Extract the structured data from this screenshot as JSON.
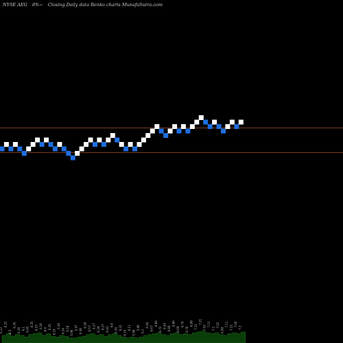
{
  "header": {
    "ticker": "NYSE AEG",
    "sep": "8%~",
    "caption": "Closing Daily data Renko charts MunafaSutra.com"
  },
  "chart_data": {
    "type": "renko",
    "title": "NYSE AEG 8%~ Closing Daily data Renko charts MunafaSutra.com",
    "up_color": "#ffffff",
    "down_color": "#1e6fe0",
    "line_color": "#a0522d",
    "volume_color": "#0a3d0a",
    "horizontal_lines_level": [
      8,
      2
    ],
    "bricks": [
      {
        "dir": "down",
        "level": 2
      },
      {
        "dir": "up",
        "level": 3
      },
      {
        "dir": "down",
        "level": 2
      },
      {
        "dir": "up",
        "level": 3
      },
      {
        "dir": "down",
        "level": 2
      },
      {
        "dir": "down",
        "level": 1
      },
      {
        "dir": "up",
        "level": 2
      },
      {
        "dir": "up",
        "level": 3
      },
      {
        "dir": "up",
        "level": 4
      },
      {
        "dir": "down",
        "level": 3
      },
      {
        "dir": "up",
        "level": 4
      },
      {
        "dir": "down",
        "level": 3
      },
      {
        "dir": "down",
        "level": 2
      },
      {
        "dir": "up",
        "level": 3
      },
      {
        "dir": "down",
        "level": 2
      },
      {
        "dir": "down",
        "level": 1
      },
      {
        "dir": "down",
        "level": 0
      },
      {
        "dir": "up",
        "level": 1
      },
      {
        "dir": "up",
        "level": 2
      },
      {
        "dir": "up",
        "level": 3
      },
      {
        "dir": "up",
        "level": 4
      },
      {
        "dir": "down",
        "level": 3
      },
      {
        "dir": "up",
        "level": 4
      },
      {
        "dir": "down",
        "level": 3
      },
      {
        "dir": "up",
        "level": 4
      },
      {
        "dir": "up",
        "level": 5
      },
      {
        "dir": "down",
        "level": 4
      },
      {
        "dir": "up",
        "level": 3
      },
      {
        "dir": "down",
        "level": 2
      },
      {
        "dir": "up",
        "level": 3
      },
      {
        "dir": "down",
        "level": 2
      },
      {
        "dir": "up",
        "level": 3
      },
      {
        "dir": "up",
        "level": 4
      },
      {
        "dir": "up",
        "level": 5
      },
      {
        "dir": "up",
        "level": 6
      },
      {
        "dir": "up",
        "level": 7
      },
      {
        "dir": "down",
        "level": 6
      },
      {
        "dir": "down",
        "level": 5
      },
      {
        "dir": "up",
        "level": 6
      },
      {
        "dir": "up",
        "level": 7
      },
      {
        "dir": "down",
        "level": 6
      },
      {
        "dir": "up",
        "level": 7
      },
      {
        "dir": "down",
        "level": 6
      },
      {
        "dir": "up",
        "level": 7
      },
      {
        "dir": "up",
        "level": 8
      },
      {
        "dir": "up",
        "level": 9
      },
      {
        "dir": "down",
        "level": 8
      },
      {
        "dir": "down",
        "level": 7
      },
      {
        "dir": "up",
        "level": 8
      },
      {
        "dir": "down",
        "level": 7
      },
      {
        "dir": "down",
        "level": 6
      },
      {
        "dir": "up",
        "level": 7
      },
      {
        "dir": "up",
        "level": 8
      },
      {
        "dir": "down",
        "level": 7
      },
      {
        "dir": "up",
        "level": 8
      }
    ],
    "volume": [
      0.45,
      0.55,
      0.4,
      0.5,
      0.45,
      0.35,
      0.5,
      0.55,
      0.6,
      0.45,
      0.55,
      0.4,
      0.35,
      0.45,
      0.4,
      0.3,
      0.3,
      0.35,
      0.4,
      0.5,
      0.55,
      0.45,
      0.5,
      0.4,
      0.5,
      0.55,
      0.45,
      0.35,
      0.3,
      0.35,
      0.3,
      0.35,
      0.45,
      0.5,
      0.55,
      0.6,
      0.5,
      0.45,
      0.55,
      0.6,
      0.5,
      0.55,
      0.5,
      0.6,
      0.65,
      0.7,
      0.6,
      0.55,
      0.6,
      0.5,
      0.45,
      0.55,
      0.6,
      0.55,
      0.65
    ],
    "volume_labels": [
      "6.22",
      "6.22",
      "6.5",
      "6.34",
      "6.36",
      "6.1",
      "6.45",
      "6.35",
      "6.53",
      "6.36",
      "6.4",
      "6.25",
      "6.19",
      "6.36",
      "6.24",
      "6.18",
      "5.96",
      "5.97",
      "6.08",
      "6.34",
      "6.57",
      "6.27",
      "6.39",
      "6.27",
      "6.43",
      "6.6",
      "6.36",
      "6.22",
      "6.14",
      "6.11",
      "5.98",
      "5.96",
      "6.2",
      "6.44",
      "6.67",
      "6.84",
      "6.72",
      "6.44",
      "6.66",
      "6.86",
      "6.69",
      "6.79",
      "6.76",
      "6.98",
      "7.11",
      "7.21",
      "7.03",
      "7.12",
      "7.1",
      "7.02",
      "6.98",
      "7.11",
      "7.22",
      "7.06",
      "7.3"
    ]
  }
}
